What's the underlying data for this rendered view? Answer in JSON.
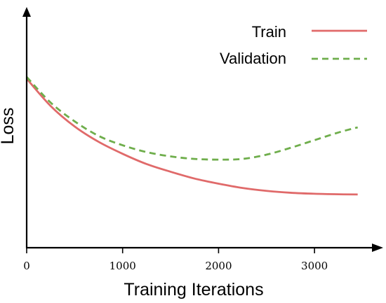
{
  "chart_data": {
    "type": "line",
    "xlabel": "Training Iterations",
    "ylabel": "Loss",
    "xlim": [
      0,
      3650
    ],
    "ylim": [
      0,
      1
    ],
    "xticks": [
      0,
      1000,
      2000,
      3000
    ],
    "xtick_labels": [
      "0",
      "1000",
      "2000",
      "3000"
    ],
    "yticks_shown": false,
    "grid": false,
    "legend": {
      "placement": "top-right"
    },
    "colors": {
      "train": "#e06a6a",
      "validation": "#6fae4c"
    },
    "series": [
      {
        "name": "Train",
        "style": "solid",
        "color": "#e06a6a",
        "x": [
          0,
          250,
          500,
          750,
          1000,
          1250,
          1500,
          1750,
          2000,
          2250,
          2500,
          2750,
          3000,
          3250,
          3450
        ],
        "y": [
          0.99,
          0.83,
          0.71,
          0.62,
          0.55,
          0.49,
          0.445,
          0.405,
          0.375,
          0.35,
          0.333,
          0.322,
          0.316,
          0.313,
          0.312
        ]
      },
      {
        "name": "Validation",
        "style": "dashed",
        "color": "#6fae4c",
        "x": [
          0,
          250,
          500,
          750,
          1000,
          1250,
          1500,
          1750,
          2000,
          2250,
          2500,
          2750,
          3000,
          3250,
          3450
        ],
        "y": [
          1.0,
          0.85,
          0.74,
          0.655,
          0.6,
          0.56,
          0.535,
          0.52,
          0.516,
          0.52,
          0.545,
          0.585,
          0.63,
          0.675,
          0.705
        ]
      }
    ]
  }
}
